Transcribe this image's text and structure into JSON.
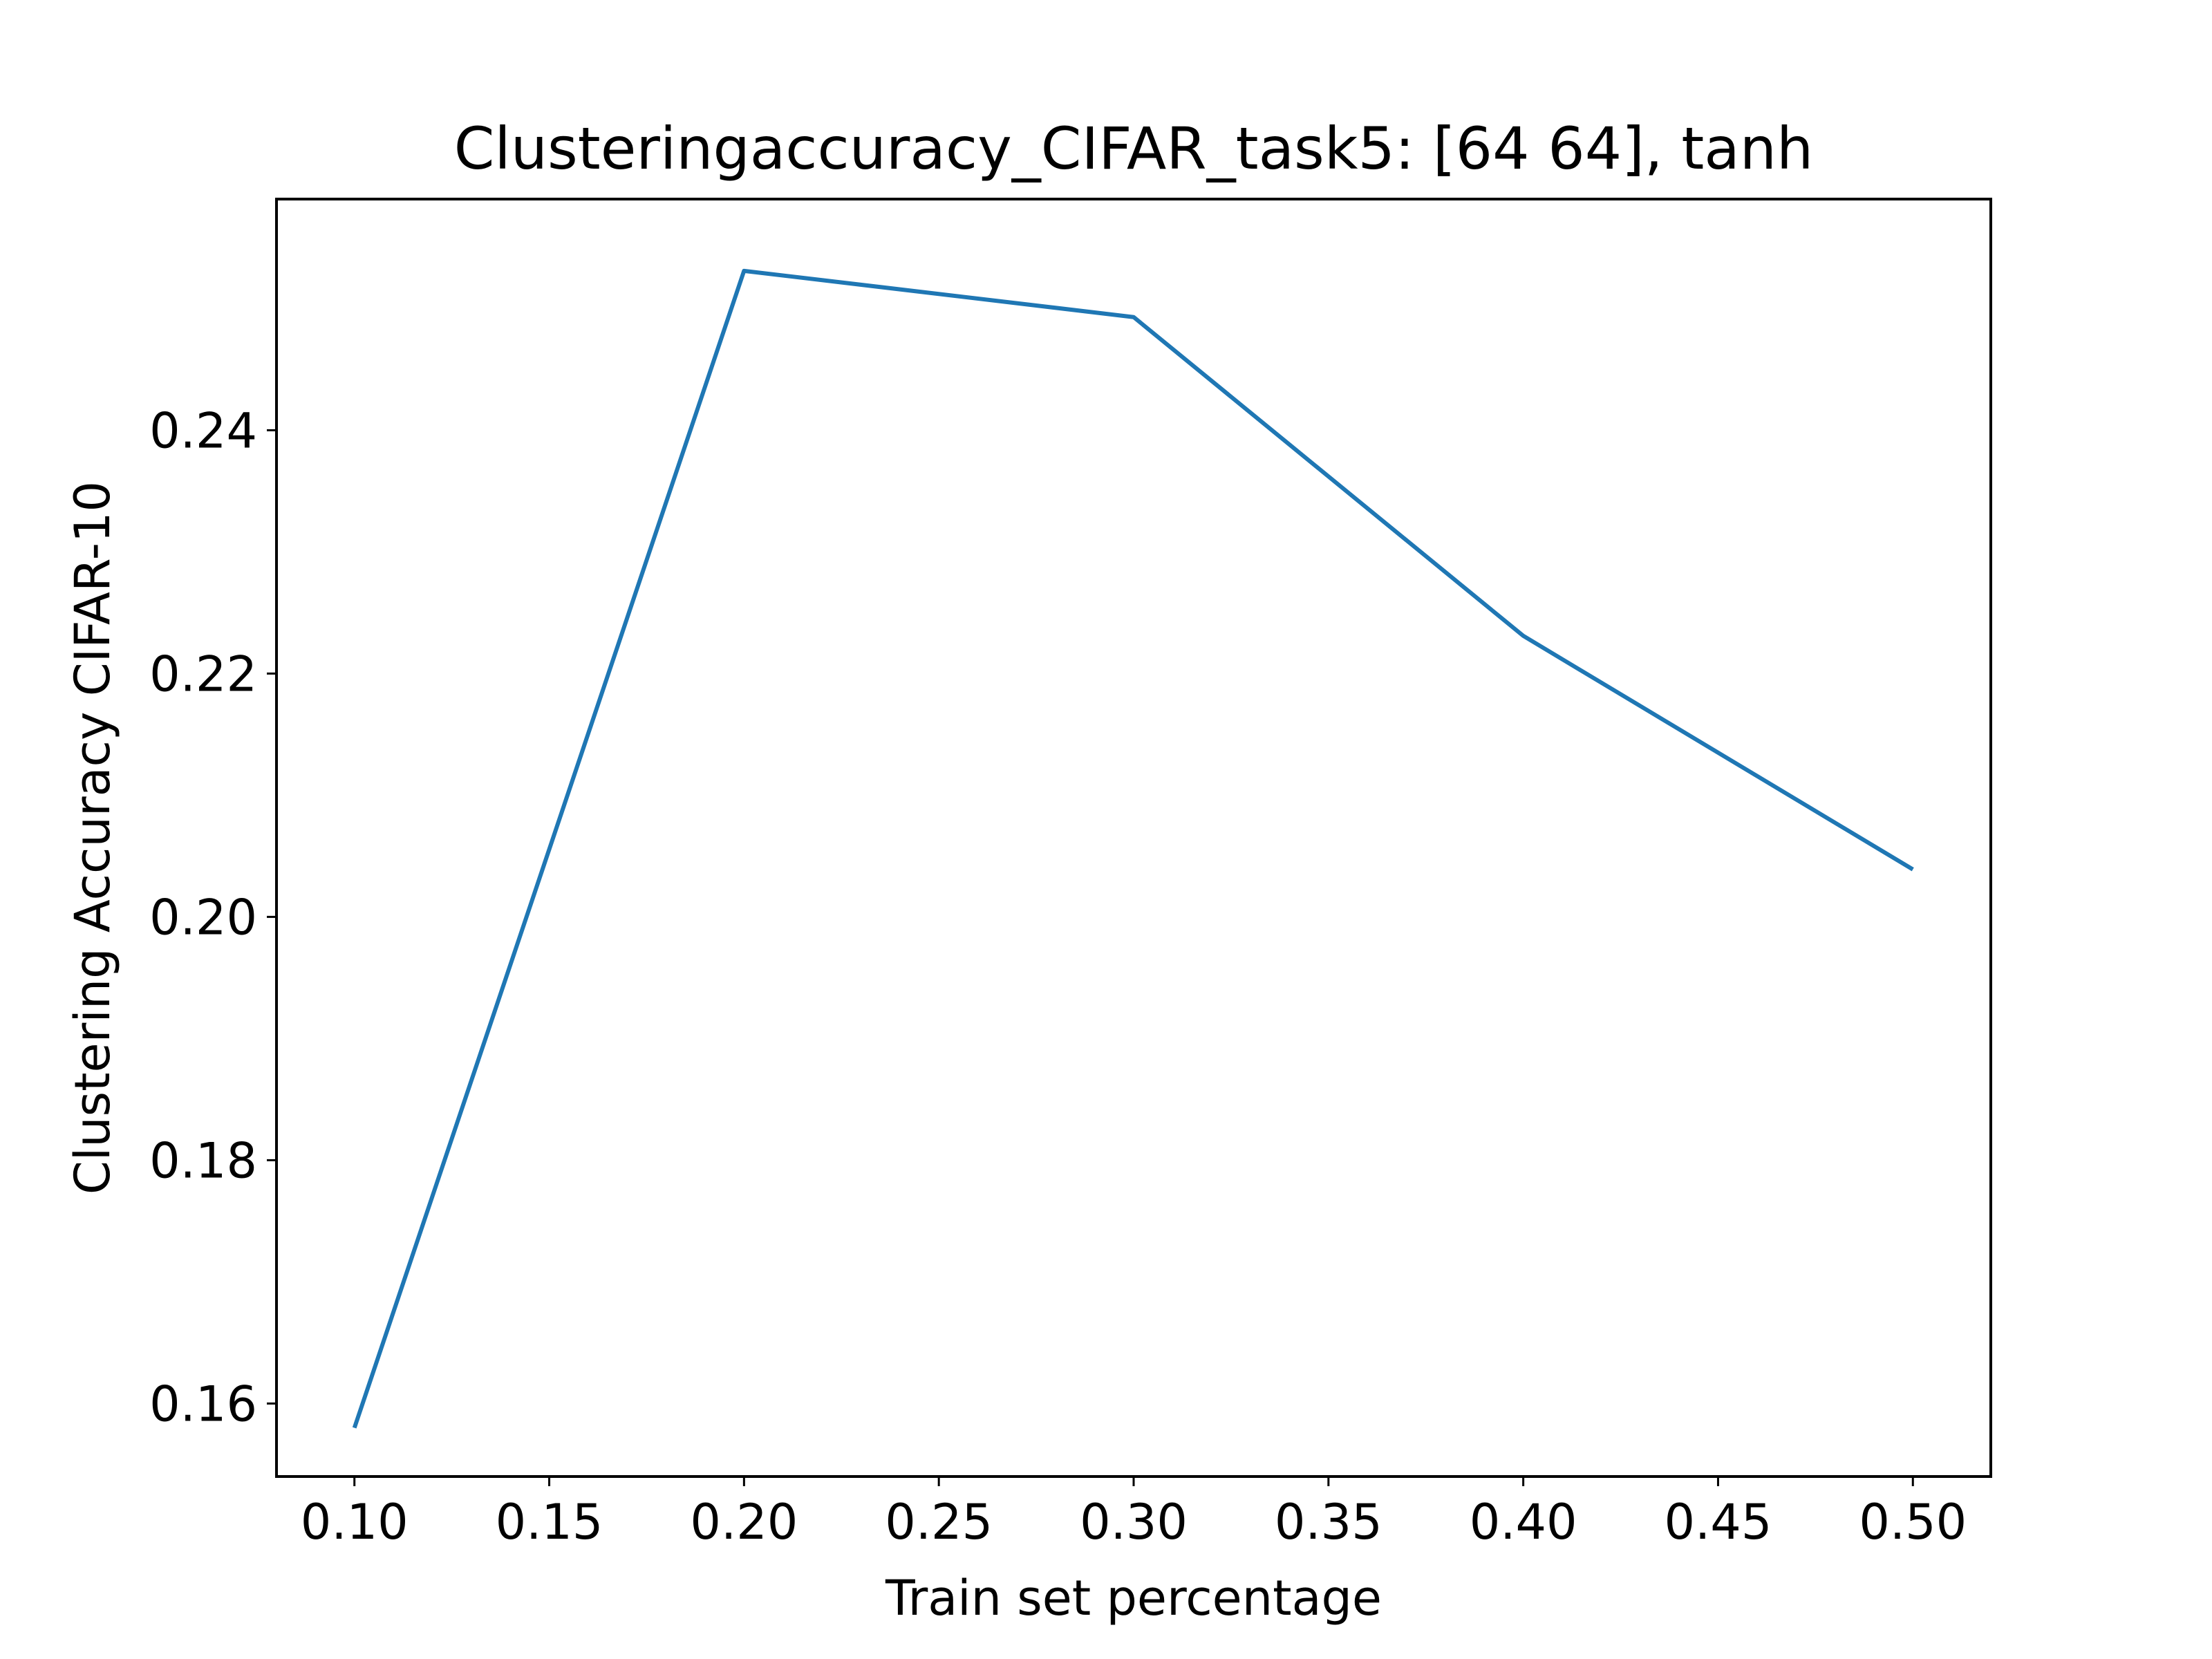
{
  "chart_data": {
    "type": "line",
    "title": "Clusteringaccuracy_CIFAR_task5: [64 64], tanh",
    "xlabel": "Train set percentage",
    "ylabel": "Clustering Accuracy CIFAR-10",
    "xlim": [
      0.08,
      0.52
    ],
    "ylim": [
      0.154,
      0.259
    ],
    "xticks": [
      0.1,
      0.15,
      0.2,
      0.25,
      0.3,
      0.35,
      0.4,
      0.45,
      0.5
    ],
    "xtick_labels": [
      "0.10",
      "0.15",
      "0.20",
      "0.25",
      "0.30",
      "0.35",
      "0.40",
      "0.45",
      "0.50"
    ],
    "yticks": [
      0.16,
      0.18,
      0.2,
      0.22,
      0.24
    ],
    "ytick_labels": [
      "0.16",
      "0.18",
      "0.20",
      "0.22",
      "0.24"
    ],
    "grid": false,
    "series": [
      {
        "color": "#1f77b4",
        "x": [
          0.1,
          0.2,
          0.3,
          0.4,
          0.5
        ],
        "y": [
          0.158,
          0.2531,
          0.2493,
          0.2231,
          0.2039
        ]
      }
    ]
  }
}
